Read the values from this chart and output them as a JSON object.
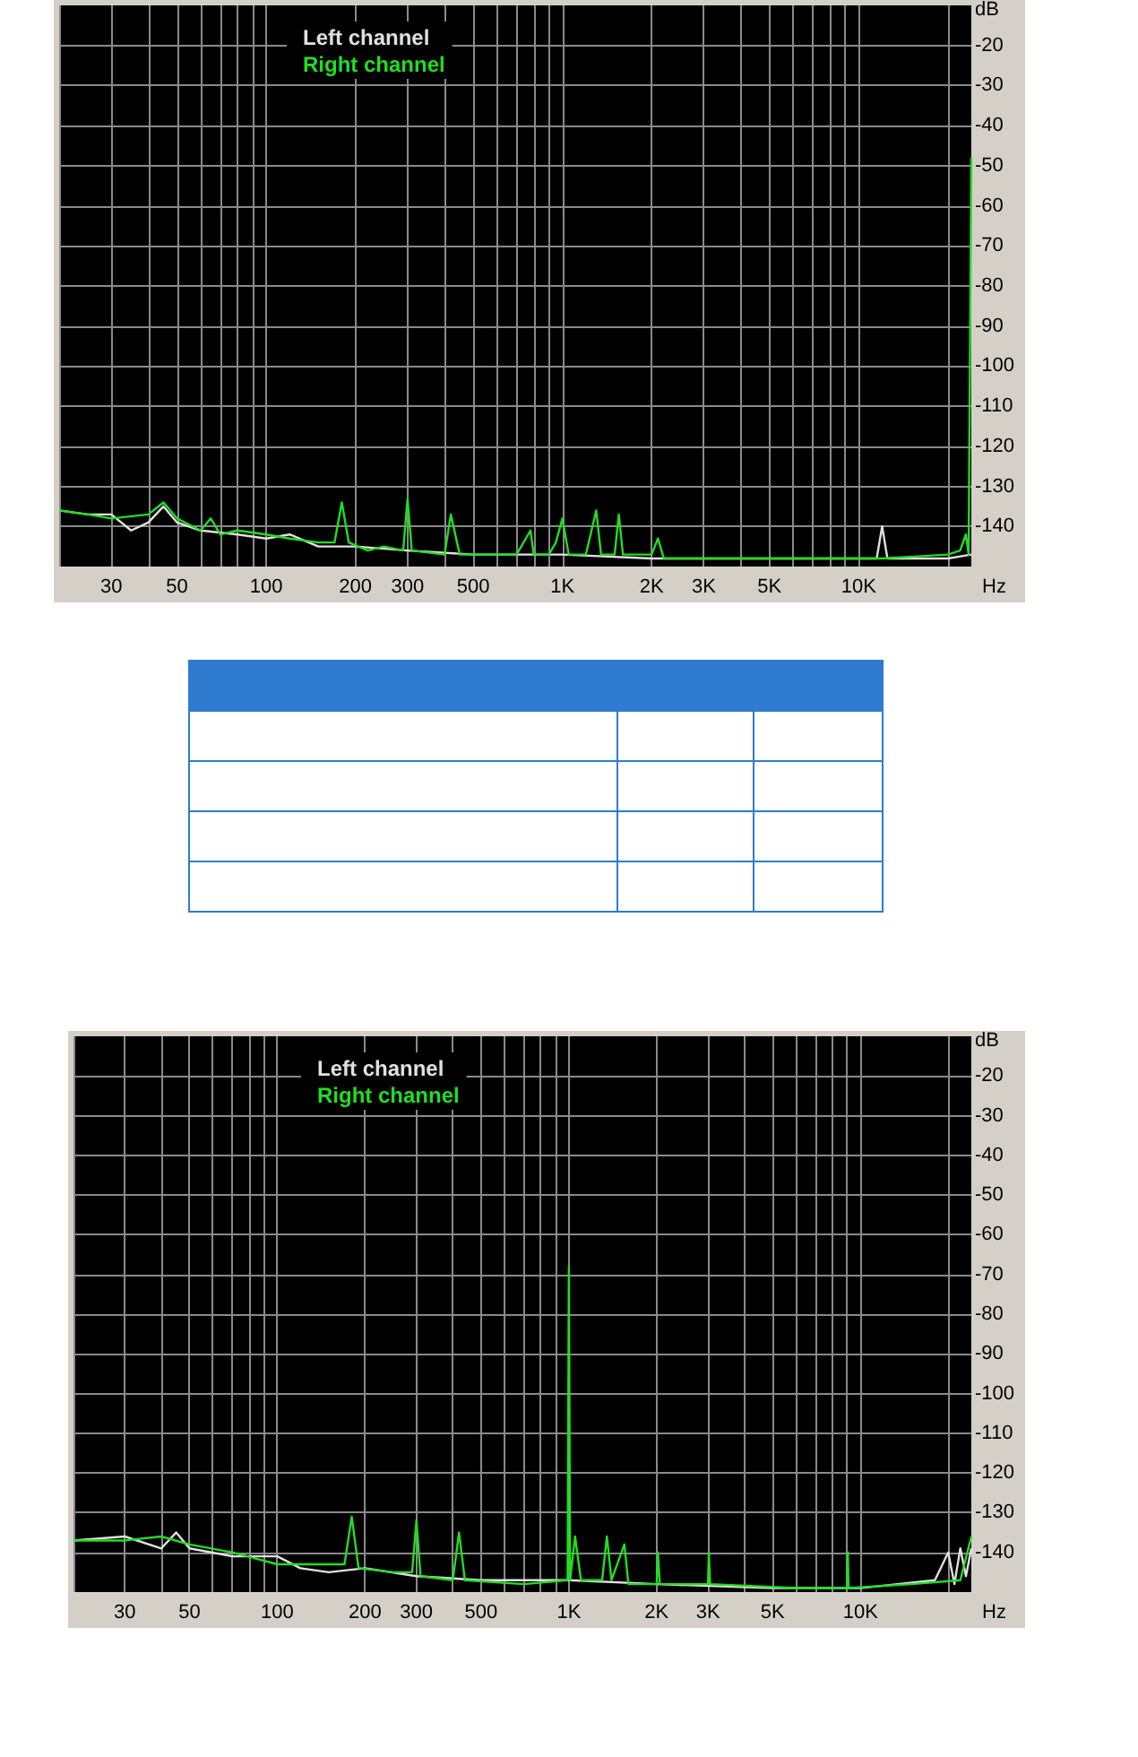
{
  "chart_data": [
    {
      "type": "line",
      "xlabel": "Hz",
      "ylabel": "dB",
      "legend": "top left",
      "grid": true,
      "log": "x",
      "xlim": [
        20,
        24000
      ],
      "ylim": [
        -150,
        -10
      ],
      "xticks": [
        {
          "value": 20,
          "label": null
        },
        30,
        {
          "value": 40,
          "label": null
        },
        50,
        {
          "value": 60,
          "label": null
        },
        {
          "value": 70,
          "label": null
        },
        {
          "value": 80,
          "label": null
        },
        {
          "value": 90,
          "label": null
        },
        100,
        200,
        300,
        {
          "value": 400,
          "label": null
        },
        500,
        {
          "value": 600,
          "label": null
        },
        {
          "value": 700,
          "label": null
        },
        {
          "value": 800,
          "label": null
        },
        {
          "value": 900,
          "label": null
        },
        {
          "value": 1000,
          "label": "1K"
        },
        {
          "value": 2000,
          "label": "2K"
        },
        {
          "value": 3000,
          "label": "3K"
        },
        {
          "value": 4000,
          "label": null
        },
        {
          "value": 5000,
          "label": "5K"
        },
        {
          "value": 6000,
          "label": null
        },
        {
          "value": 7000,
          "label": null
        },
        {
          "value": 8000,
          "label": null
        },
        {
          "value": 9000,
          "label": null
        },
        {
          "value": 10000,
          "label": "10K"
        },
        {
          "value": 20000,
          "label": null
        }
      ],
      "yticks": [
        -20,
        -30,
        -40,
        -50,
        -60,
        -70,
        -80,
        -90,
        -100,
        -110,
        -120,
        -130,
        -140
      ],
      "series": [
        {
          "name": "Left channel",
          "color": "#e0e0e0",
          "x": [
            20,
            25,
            30,
            35,
            40,
            45,
            50,
            60,
            80,
            100,
            120,
            150,
            200,
            300,
            500,
            1000,
            2000,
            5000,
            11500,
            12000,
            12500,
            20000,
            24000
          ],
          "values": [
            -136,
            -137,
            -137,
            -141,
            -139,
            -135,
            -139,
            -141,
            -142,
            -143,
            -142,
            -145,
            -145,
            -146,
            -147,
            -147,
            -148,
            -148,
            -148,
            -140,
            -148,
            -148,
            -147
          ]
        },
        {
          "name": "Right channel",
          "color": "#22dd22",
          "x": [
            20,
            25,
            30,
            40,
            45,
            50,
            60,
            65,
            70,
            80,
            100,
            120,
            150,
            170,
            180,
            190,
            220,
            250,
            290,
            300,
            310,
            400,
            420,
            450,
            600,
            700,
            780,
            800,
            900,
            950,
            1000,
            1050,
            1200,
            1300,
            1350,
            1500,
            1550,
            1600,
            2000,
            2100,
            2200,
            3000,
            5000,
            8000,
            12000,
            20000,
            22000,
            23000,
            23500,
            24000
          ],
          "values": [
            -136,
            -137,
            -138,
            -137,
            -134,
            -138,
            -141,
            -138,
            -142,
            -141,
            -142,
            -143,
            -144,
            -144,
            -134,
            -144,
            -146,
            -145,
            -146,
            -133,
            -146,
            -147,
            -137,
            -147,
            -147,
            -147,
            -141,
            -147,
            -147,
            -144,
            -138,
            -147,
            -147,
            -136,
            -147,
            -147,
            -137,
            -147,
            -147,
            -143,
            -148,
            -148,
            -148,
            -148,
            -148,
            -147,
            -146,
            -142,
            -147,
            -48
          ]
        }
      ]
    },
    {
      "type": "line",
      "xlabel": "Hz",
      "ylabel": "dB",
      "legend": "top left",
      "grid": true,
      "log": "x",
      "xlim": [
        20,
        24000
      ],
      "ylim": [
        -150,
        -10
      ],
      "xticks": [
        {
          "value": 20,
          "label": null
        },
        30,
        {
          "value": 40,
          "label": null
        },
        50,
        {
          "value": 60,
          "label": null
        },
        {
          "value": 70,
          "label": null
        },
        {
          "value": 80,
          "label": null
        },
        {
          "value": 90,
          "label": null
        },
        100,
        200,
        300,
        {
          "value": 400,
          "label": null
        },
        500,
        {
          "value": 600,
          "label": null
        },
        {
          "value": 700,
          "label": null
        },
        {
          "value": 800,
          "label": null
        },
        {
          "value": 900,
          "label": null
        },
        {
          "value": 1000,
          "label": "1K"
        },
        {
          "value": 2000,
          "label": "2K"
        },
        {
          "value": 3000,
          "label": "3K"
        },
        {
          "value": 4000,
          "label": null
        },
        {
          "value": 5000,
          "label": "5K"
        },
        {
          "value": 6000,
          "label": null
        },
        {
          "value": 7000,
          "label": null
        },
        {
          "value": 8000,
          "label": null
        },
        {
          "value": 9000,
          "label": null
        },
        {
          "value": 10000,
          "label": "10K"
        },
        {
          "value": 20000,
          "label": null
        }
      ],
      "yticks": [
        -20,
        -30,
        -40,
        -50,
        -60,
        -70,
        -80,
        -90,
        -100,
        -110,
        -120,
        -130,
        -140
      ],
      "series": [
        {
          "name": "Left channel",
          "color": "#e0e0e0",
          "x": [
            20,
            30,
            40,
            45,
            50,
            70,
            100,
            120,
            150,
            200,
            300,
            500,
            1000,
            2000,
            5000,
            10000,
            18000,
            20000,
            21000,
            22000,
            23000,
            24000
          ],
          "values": [
            -137,
            -136,
            -139,
            -135,
            -139,
            -141,
            -141,
            -144,
            -145,
            -144,
            -146,
            -147,
            -147,
            -148,
            -149,
            -149,
            -147,
            -140,
            -148,
            -139,
            -146,
            -139
          ]
        },
        {
          "name": "Right channel",
          "color": "#22dd22",
          "x": [
            20,
            30,
            40,
            50,
            70,
            100,
            150,
            170,
            180,
            190,
            250,
            290,
            300,
            310,
            400,
            420,
            440,
            700,
            990,
            1000,
            1010,
            1050,
            1100,
            1300,
            1350,
            1400,
            1550,
            1600,
            2000,
            2020,
            2050,
            3000,
            3020,
            3050,
            6000,
            9000,
            9050,
            9100,
            15000,
            22000,
            24000
          ],
          "values": [
            -137,
            -137,
            -136,
            -138,
            -140,
            -143,
            -143,
            -143,
            -131,
            -144,
            -145,
            -145,
            -132,
            -146,
            -147,
            -135,
            -147,
            -148,
            -147,
            -68,
            -147,
            -136,
            -147,
            -147,
            -136,
            -147,
            -138,
            -148,
            -148,
            -140,
            -148,
            -148,
            -140,
            -148,
            -149,
            -149,
            -140,
            -149,
            -148,
            -147,
            -136
          ]
        }
      ]
    }
  ]
}
